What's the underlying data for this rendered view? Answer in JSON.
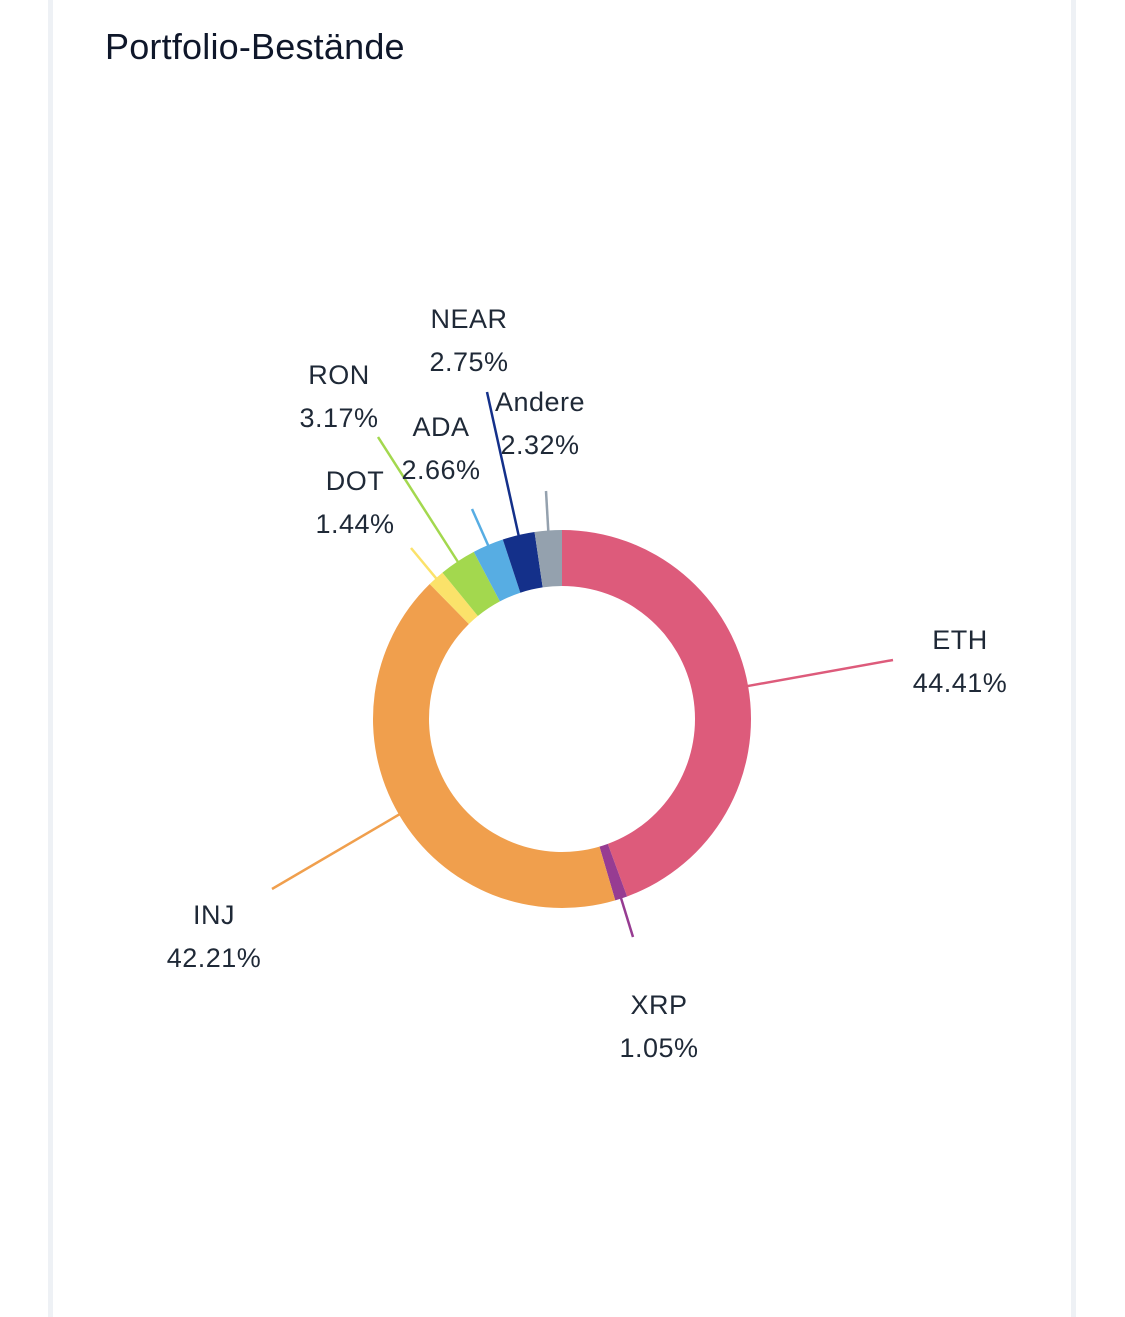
{
  "card": {
    "title": "Portfolio-Bestände"
  },
  "chart_data": {
    "type": "pie",
    "variant": "donut",
    "title": "Portfolio-Bestände",
    "legend": "none",
    "labels_position": "outside-with-leader-lines",
    "slices": [
      {
        "label": "ETH",
        "value": 44.41,
        "display": "44.41%",
        "color": "#dd5b7b"
      },
      {
        "label": "XRP",
        "value": 1.05,
        "display": "1.05%",
        "color": "#973c92"
      },
      {
        "label": "INJ",
        "value": 42.21,
        "display": "42.21%",
        "color": "#f09f4d"
      },
      {
        "label": "DOT",
        "value": 1.44,
        "display": "1.44%",
        "color": "#fbe26a"
      },
      {
        "label": "RON",
        "value": 3.17,
        "display": "3.17%",
        "color": "#a3d84e"
      },
      {
        "label": "ADA",
        "value": 2.66,
        "display": "2.66%",
        "color": "#57ade3"
      },
      {
        "label": "NEAR",
        "value": 2.75,
        "display": "2.75%",
        "color": "#14308a"
      },
      {
        "label": "Andere",
        "value": 2.32,
        "display": "2.32%",
        "color": "#94a1ae"
      }
    ]
  }
}
